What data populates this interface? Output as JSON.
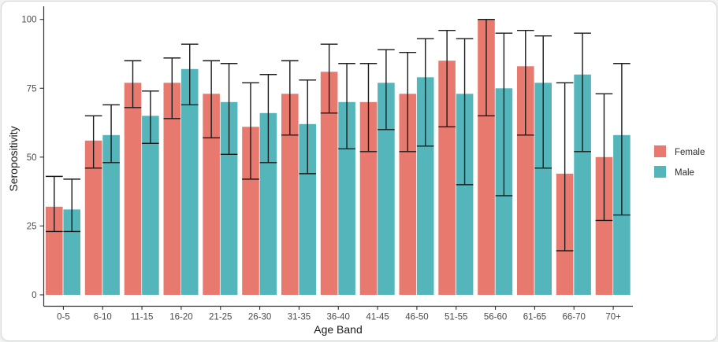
{
  "chart_data": {
    "type": "bar",
    "subtype": "grouped-with-error-bars",
    "title": "",
    "xlabel": "Age Band",
    "ylabel": "Seropositivity",
    "categories": [
      "0-5",
      "6-10",
      "11-15",
      "16-20",
      "21-25",
      "26-30",
      "31-35",
      "36-40",
      "41-45",
      "46-50",
      "51-55",
      "56-60",
      "61-65",
      "66-70",
      "70+"
    ],
    "series": [
      {
        "name": "Female",
        "color": "#E8796E",
        "values": [
          32,
          56,
          77,
          77,
          73,
          61,
          73,
          81,
          70,
          73,
          85,
          100,
          83,
          44,
          50
        ],
        "err_low": [
          23,
          46,
          68,
          64,
          57,
          42,
          58,
          66,
          52,
          52,
          61,
          65,
          58,
          16,
          27
        ],
        "err_high": [
          43,
          65,
          85,
          86,
          85,
          77,
          85,
          91,
          84,
          88,
          96,
          100,
          96,
          77,
          73
        ]
      },
      {
        "name": "Male",
        "color": "#54B6BA",
        "values": [
          31,
          58,
          65,
          82,
          70,
          66,
          62,
          70,
          77,
          79,
          73,
          75,
          77,
          80,
          58
        ],
        "err_low": [
          23,
          48,
          55,
          69,
          51,
          48,
          44,
          53,
          60,
          54,
          40,
          36,
          46,
          52,
          29
        ],
        "err_high": [
          42,
          69,
          74,
          91,
          84,
          80,
          78,
          84,
          89,
          93,
          93,
          95,
          94,
          95,
          84
        ]
      }
    ],
    "y_ticks": [
      0,
      25,
      50,
      75,
      100
    ],
    "ylim": [
      0,
      100
    ],
    "grid": false,
    "legend_position": "right",
    "error_bar_color": "#1a1a1a",
    "axis_color": "#333333",
    "tick_label_color": "#4a4a4a",
    "title_color": "#1a1a1a",
    "background": "#ffffff"
  }
}
